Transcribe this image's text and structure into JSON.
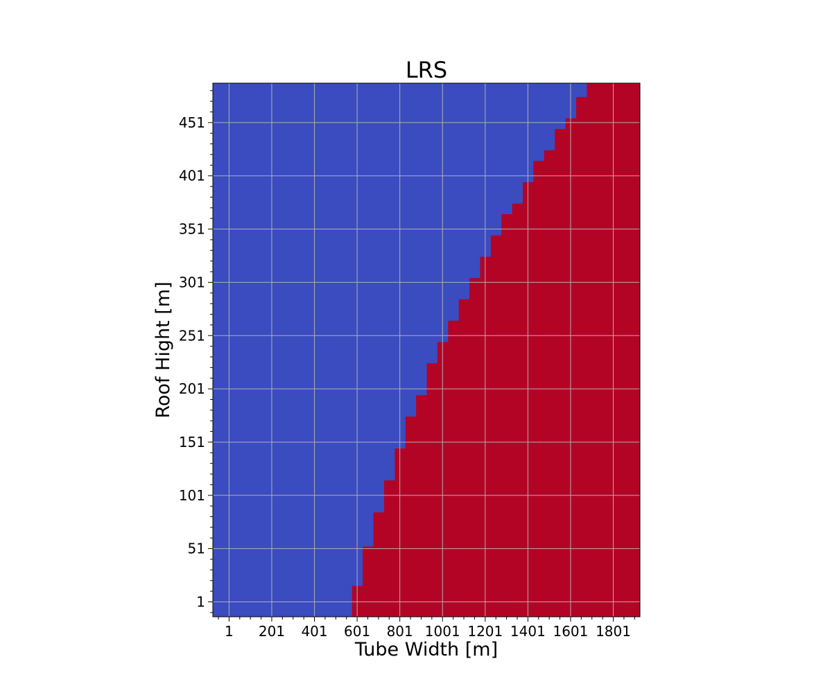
{
  "chart_data": {
    "type": "heatmap",
    "title": "LRS",
    "xlabel": "Tube Width [m]",
    "ylabel": "Roof Hight [m]",
    "xlim": [
      -75,
      1926
    ],
    "ylim": [
      -13,
      488
    ],
    "x_ticks": [
      1,
      201,
      401,
      601,
      801,
      1001,
      1201,
      1401,
      1601,
      1801
    ],
    "y_ticks": [
      1,
      51,
      101,
      151,
      201,
      251,
      301,
      351,
      401,
      451
    ],
    "x_tick_labels": [
      "1",
      "201",
      "401",
      "601",
      "801",
      "1001",
      "1201",
      "1401",
      "1601",
      "1801"
    ],
    "y_tick_labels": [
      "1",
      "51",
      "101",
      "151",
      "201",
      "251",
      "301",
      "351",
      "401",
      "451"
    ],
    "grid": true,
    "colors": {
      "low": "#3b4cc0",
      "high": "#b40426",
      "grid": "#b0b0b0"
    },
    "boundary": [
      {
        "y_from": -13,
        "y_to": 16,
        "x": 577
      },
      {
        "y_from": 16,
        "y_to": 53,
        "x": 627
      },
      {
        "y_from": 53,
        "y_to": 85,
        "x": 677
      },
      {
        "y_from": 85,
        "y_to": 115,
        "x": 727
      },
      {
        "y_from": 115,
        "y_to": 145,
        "x": 777
      },
      {
        "y_from": 145,
        "y_to": 175,
        "x": 827
      },
      {
        "y_from": 175,
        "y_to": 195,
        "x": 877
      },
      {
        "y_from": 195,
        "y_to": 225,
        "x": 927
      },
      {
        "y_from": 225,
        "y_to": 245,
        "x": 977
      },
      {
        "y_from": 245,
        "y_to": 265,
        "x": 1027
      },
      {
        "y_from": 265,
        "y_to": 285,
        "x": 1077
      },
      {
        "y_from": 285,
        "y_to": 305,
        "x": 1127
      },
      {
        "y_from": 305,
        "y_to": 325,
        "x": 1177
      },
      {
        "y_from": 325,
        "y_to": 345,
        "x": 1227
      },
      {
        "y_from": 345,
        "y_to": 365,
        "x": 1277
      },
      {
        "y_from": 365,
        "y_to": 375,
        "x": 1327
      },
      {
        "y_from": 375,
        "y_to": 395,
        "x": 1377
      },
      {
        "y_from": 395,
        "y_to": 415,
        "x": 1427
      },
      {
        "y_from": 415,
        "y_to": 425,
        "x": 1477
      },
      {
        "y_from": 425,
        "y_to": 445,
        "x": 1527
      },
      {
        "y_from": 445,
        "y_to": 455,
        "x": 1577
      },
      {
        "y_from": 455,
        "y_to": 475,
        "x": 1627
      },
      {
        "y_from": 475,
        "y_to": 488,
        "x": 1677
      }
    ]
  }
}
